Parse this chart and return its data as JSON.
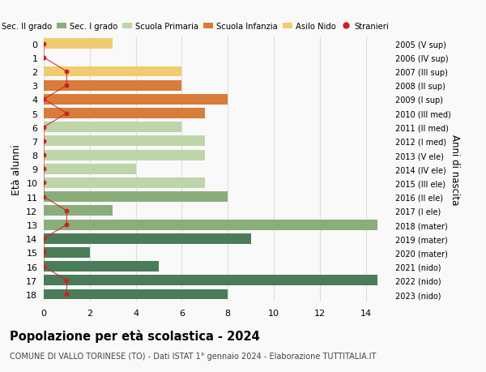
{
  "ages": [
    18,
    17,
    16,
    15,
    14,
    13,
    12,
    11,
    10,
    9,
    8,
    7,
    6,
    5,
    4,
    3,
    2,
    1,
    0
  ],
  "right_labels": [
    "2005 (V sup)",
    "2006 (IV sup)",
    "2007 (III sup)",
    "2008 (II sup)",
    "2009 (I sup)",
    "2010 (III med)",
    "2011 (II med)",
    "2012 (I med)",
    "2013 (V ele)",
    "2014 (IV ele)",
    "2015 (III ele)",
    "2016 (II ele)",
    "2017 (I ele)",
    "2018 (mater)",
    "2019 (mater)",
    "2020 (mater)",
    "2021 (nido)",
    "2022 (nido)",
    "2023 (nido)"
  ],
  "bar_values": [
    8,
    14.5,
    5,
    2,
    9,
    14.5,
    3,
    8,
    7,
    4,
    7,
    7,
    6,
    7,
    8,
    6,
    6,
    0,
    3
  ],
  "bar_colors": [
    "#4a7c59",
    "#4a7c59",
    "#4a7c59",
    "#4a7c59",
    "#4a7c59",
    "#8aad7a",
    "#8aad7a",
    "#8aad7a",
    "#bdd5a8",
    "#bdd5a8",
    "#bdd5a8",
    "#bdd5a8",
    "#bdd5a8",
    "#d97c3a",
    "#d97c3a",
    "#d97c3a",
    "#f0cb70",
    "#f0cb70",
    "#f0cb70"
  ],
  "stranieri_values": [
    1,
    1,
    0,
    0,
    0,
    1,
    1,
    0,
    0,
    0,
    0,
    0,
    0,
    1,
    0,
    1,
    1,
    0,
    0
  ],
  "legend_labels": [
    "Sec. II grado",
    "Sec. I grado",
    "Scuola Primaria",
    "Scuola Infanzia",
    "Asilo Nido",
    "Stranieri"
  ],
  "legend_colors": [
    "#4a7c59",
    "#8aad7a",
    "#bdd5a8",
    "#d97c3a",
    "#f0cb70",
    "#cc2222"
  ],
  "ylabel": "Età alunni",
  "right_ylabel": "Anni di nascita",
  "title": "Popolazione per età scolastica - 2024",
  "subtitle": "COMUNE DI VALLO TORINESE (TO) - Dati ISTAT 1° gennaio 2024 - Elaborazione TUTTITALIA.IT",
  "xlim": [
    0,
    15
  ],
  "ylim": [
    -0.5,
    18.5
  ],
  "grid_color": "#dddddd",
  "bg_color": "#f9f9f9",
  "bar_height": 0.75
}
